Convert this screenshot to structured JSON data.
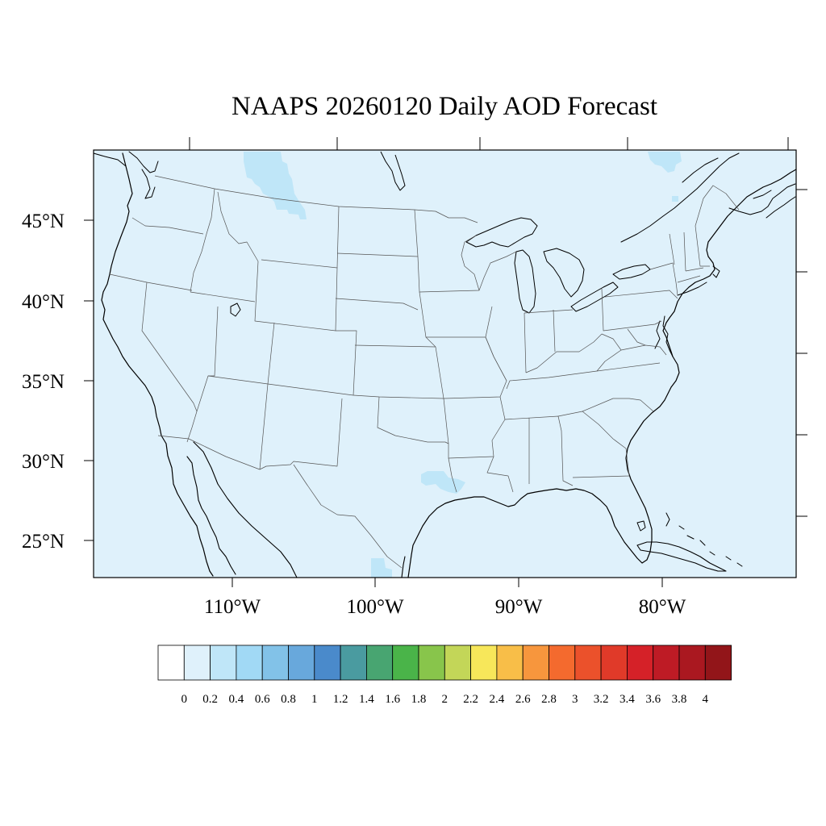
{
  "title": "NAAPS 20260120 Daily AOD Forecast",
  "map": {
    "background_color": "#dff1fb",
    "lat_labels": [
      "45°N",
      "40°N",
      "35°N",
      "30°N",
      "25°N"
    ],
    "lon_labels": [
      "110°W",
      "100°W",
      "90°W",
      "80°W"
    ],
    "plumes": [
      {
        "region": "Montana / Alberta border",
        "aod_bin": "0.2-0.4",
        "color": "#bfe6f8"
      },
      {
        "region": "Louisiana / Texas coast",
        "aod_bin": "0.2-0.4",
        "color": "#bfe6f8"
      },
      {
        "region": "Quebec",
        "aod_bin": "0.2-0.4",
        "color": "#bfe6f8"
      },
      {
        "region": "Gulf of Mexico",
        "aod_bin": "0.2-0.4",
        "color": "#bfe6f8"
      }
    ]
  },
  "colorbar": {
    "colors": [
      "#ffffff",
      "#dff1fb",
      "#bfe6f8",
      "#a1d9f5",
      "#82c2e8",
      "#68a8dc",
      "#4a8acb",
      "#4a9ba0",
      "#48a571",
      "#4ab449",
      "#88c54b",
      "#c3d658",
      "#f7e75a",
      "#f8be48",
      "#f7963d",
      "#f46a2e",
      "#eb512b",
      "#e03a29",
      "#d52128",
      "#be1b25",
      "#aa1820",
      "#921519"
    ],
    "labels": [
      "0",
      "0.2",
      "0.4",
      "0.6",
      "0.8",
      "1",
      "1.2",
      "1.4",
      "1.6",
      "1.8",
      "2",
      "2.2",
      "2.4",
      "2.6",
      "2.8",
      "3",
      "3.2",
      "3.4",
      "3.6",
      "3.8",
      "4"
    ]
  }
}
